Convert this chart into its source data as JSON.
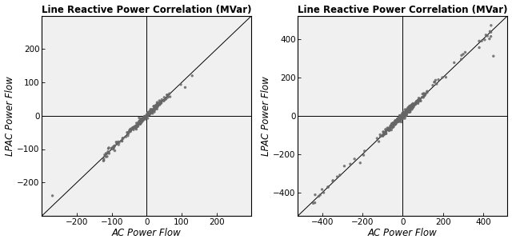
{
  "title": "Line Reactive Power Correlation (MVar)",
  "xlabel": "AC Power Flow",
  "ylabel": "LPAC Power Flow",
  "plot1": {
    "xlim": [
      -300,
      300
    ],
    "ylim": [
      -300,
      300
    ],
    "xticks": [
      -200,
      -100,
      0,
      100,
      200
    ],
    "yticks": [
      -200,
      -100,
      0,
      100,
      200
    ],
    "scatter_color": "#666666",
    "scatter_size": 6,
    "scatter_alpha": 0.85
  },
  "plot2": {
    "xlim": [
      -520,
      520
    ],
    "ylim": [
      -520,
      520
    ],
    "xticks": [
      -400,
      -200,
      0,
      200,
      400
    ],
    "yticks": [
      -400,
      -200,
      0,
      200,
      400
    ],
    "scatter_color": "#666666",
    "scatter_size": 6,
    "scatter_alpha": 0.85
  },
  "fig_bg": "#ffffff",
  "ax_bg": "#f0f0f0",
  "ref_line_color": "#000000",
  "axis_line_color": "#000000",
  "spine_color": "#000000",
  "title_fontsize": 8.5,
  "label_fontsize": 8.5,
  "tick_fontsize": 7.5
}
